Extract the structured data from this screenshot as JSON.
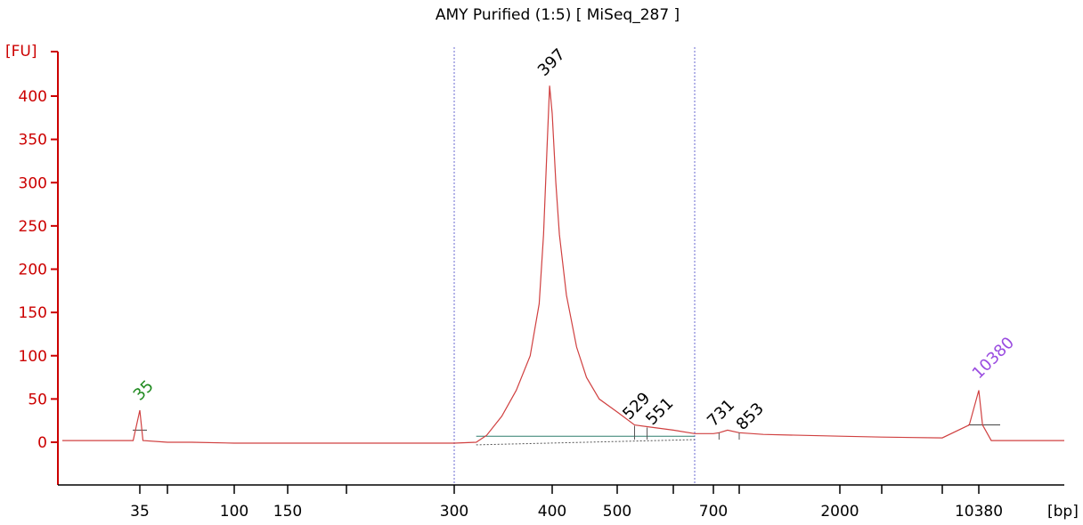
{
  "colors": {
    "axis": "#cc0000",
    "trace": "#d04040",
    "marker": "#1f8a1f",
    "ladder_marker": "#9a4ce0",
    "region_line": "#6a6ad0",
    "baseline": "#2f7f6f",
    "text": "#000000"
  },
  "chart_data": {
    "type": "line",
    "title": "AMY Purified (1:5)  [ MiSeq_287 ]",
    "ylabel": "[FU]",
    "xlabel": "[bp]",
    "ylim": [
      -45,
      450
    ],
    "yticks": [
      0,
      50,
      100,
      150,
      200,
      250,
      300,
      350,
      400
    ],
    "xticks": [
      "35",
      "100",
      "150",
      "300",
      "400",
      "500",
      "700",
      "2000",
      "10380"
    ],
    "region_bounds_bp": [
      300,
      650
    ],
    "peaks": [
      {
        "label": "35",
        "color": "green",
        "x_bp": 35,
        "height": 37
      },
      {
        "label": "397",
        "color": "black",
        "x_bp": 397,
        "height": 412
      },
      {
        "label": "529",
        "color": "black",
        "x_bp": 529,
        "height": 19
      },
      {
        "label": "551",
        "color": "black",
        "x_bp": 551,
        "height": 17
      },
      {
        "label": "731",
        "color": "black",
        "x_bp": 731,
        "height": 11
      },
      {
        "label": "853",
        "color": "black",
        "x_bp": 853,
        "height": 11
      },
      {
        "label": "10380",
        "color": "purple",
        "x_bp": 10380,
        "height": 60
      }
    ],
    "trace": [
      [
        25,
        2
      ],
      [
        34,
        2
      ],
      [
        35,
        37
      ],
      [
        36,
        2
      ],
      [
        45,
        0
      ],
      [
        60,
        0
      ],
      [
        100,
        -1
      ],
      [
        200,
        -1
      ],
      [
        300,
        -1
      ],
      [
        320,
        0
      ],
      [
        330,
        8
      ],
      [
        345,
        30
      ],
      [
        360,
        60
      ],
      [
        375,
        100
      ],
      [
        385,
        160
      ],
      [
        390,
        240
      ],
      [
        394,
        340
      ],
      [
        397,
        412
      ],
      [
        400,
        380
      ],
      [
        405,
        300
      ],
      [
        410,
        240
      ],
      [
        420,
        170
      ],
      [
        435,
        110
      ],
      [
        450,
        75
      ],
      [
        470,
        50
      ],
      [
        500,
        35
      ],
      [
        529,
        20
      ],
      [
        551,
        18
      ],
      [
        600,
        14
      ],
      [
        650,
        10
      ],
      [
        700,
        10
      ],
      [
        731,
        11
      ],
      [
        780,
        14
      ],
      [
        853,
        11
      ],
      [
        1000,
        9
      ],
      [
        2000,
        7
      ],
      [
        5000,
        6
      ],
      [
        9000,
        5
      ],
      [
        10000,
        20
      ],
      [
        10380,
        60
      ],
      [
        10700,
        20
      ],
      [
        11500,
        2
      ],
      [
        14000,
        2
      ],
      [
        18000,
        2
      ]
    ]
  }
}
